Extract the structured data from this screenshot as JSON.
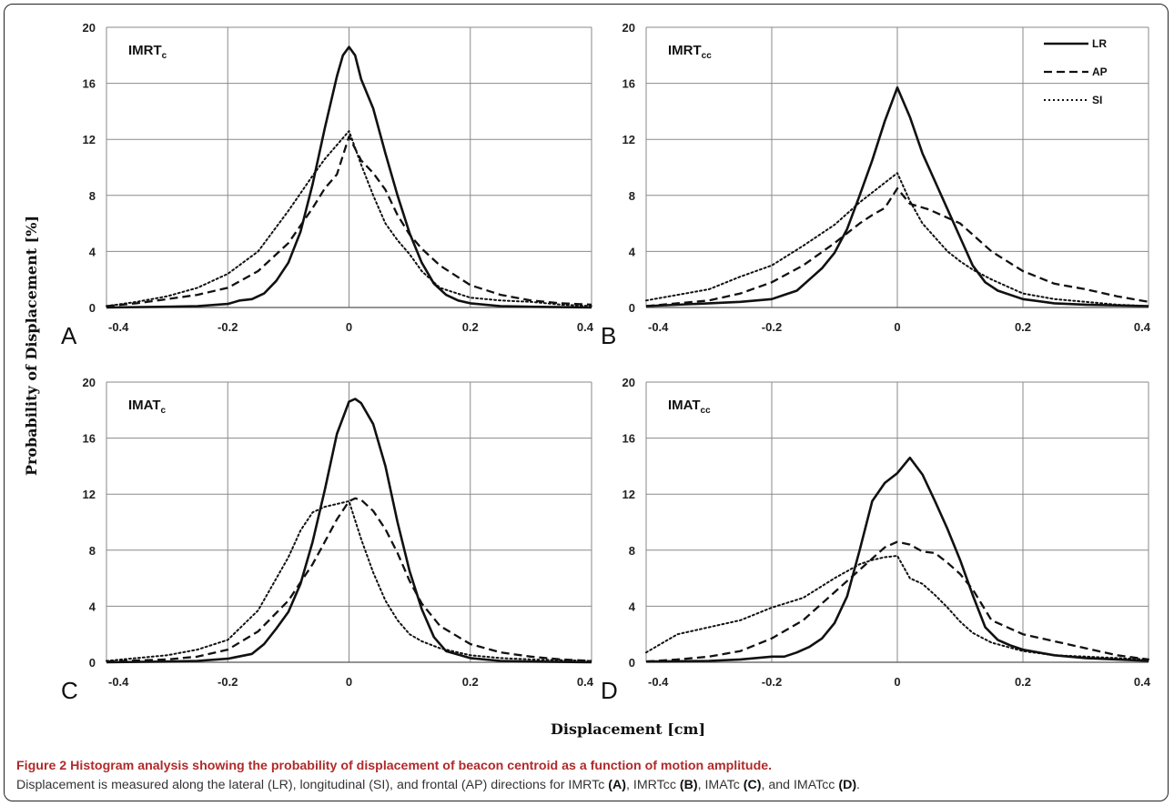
{
  "figure": {
    "caption_title": "Figure 2 Histogram analysis showing the probability of displacement of beacon centroid as a function of motion amplitude.",
    "caption_body_parts": [
      {
        "text": "Displacement is measured along the lateral (LR), longitudinal (SI), and frontal (AP) directions for IMRTc ",
        "bold": false
      },
      {
        "text": "(A)",
        "bold": true
      },
      {
        "text": ", IMRTcc ",
        "bold": false
      },
      {
        "text": "(B)",
        "bold": true
      },
      {
        "text": ", IMATc ",
        "bold": false
      },
      {
        "text": "(C)",
        "bold": true
      },
      {
        "text": ", and IMATcc ",
        "bold": false
      },
      {
        "text": "(D)",
        "bold": true
      },
      {
        "text": ".",
        "bold": false
      }
    ],
    "ylabel": "Probability of Displacement [%]",
    "xlabel": "Displacement [cm]",
    "legend": [
      {
        "name": "LR",
        "style": "solid"
      },
      {
        "name": "AP",
        "style": "dashed"
      },
      {
        "name": "SI",
        "style": "dotted"
      }
    ]
  },
  "chart_data": [
    {
      "type": "line",
      "panel": "A",
      "title": "IMRT",
      "title_sub": "c",
      "xlim": [
        -0.4,
        0.4
      ],
      "ylim": [
        0,
        20
      ],
      "xticks": [
        -0.4,
        -0.2,
        0,
        0.2,
        0.4
      ],
      "xtick_labels": [
        "-0.4",
        "-0.2",
        "0",
        "0.2",
        "0.4"
      ],
      "yticks": [
        0,
        4,
        8,
        12,
        16,
        20
      ],
      "grid": true,
      "series": [
        {
          "name": "LR",
          "style": "solid",
          "x": [
            -0.4,
            -0.3,
            -0.25,
            -0.2,
            -0.18,
            -0.16,
            -0.14,
            -0.12,
            -0.1,
            -0.08,
            -0.06,
            -0.04,
            -0.02,
            -0.01,
            0,
            0.01,
            0.02,
            0.04,
            0.06,
            0.08,
            0.1,
            0.12,
            0.14,
            0.16,
            0.18,
            0.2,
            0.25,
            0.3,
            0.4
          ],
          "y": [
            0,
            0.05,
            0.1,
            0.25,
            0.5,
            0.6,
            1.0,
            1.9,
            3.2,
            5.4,
            8.8,
            12.8,
            16.5,
            18.0,
            18.6,
            18.0,
            16.3,
            14.2,
            11.0,
            8.0,
            5.3,
            3.2,
            1.7,
            0.9,
            0.5,
            0.3,
            0.1,
            0.05,
            0
          ]
        },
        {
          "name": "AP",
          "style": "dashed",
          "x": [
            -0.4,
            -0.35,
            -0.3,
            -0.25,
            -0.2,
            -0.15,
            -0.1,
            -0.06,
            -0.04,
            -0.02,
            0,
            0.02,
            0.04,
            0.06,
            0.08,
            0.1,
            0.12,
            0.15,
            0.2,
            0.25,
            0.3,
            0.35,
            0.4
          ],
          "y": [
            0.1,
            0.3,
            0.6,
            0.9,
            1.4,
            2.6,
            4.6,
            7.1,
            8.5,
            9.5,
            12.2,
            10.5,
            9.6,
            8.4,
            6.6,
            5.2,
            4.2,
            3.0,
            1.6,
            0.9,
            0.5,
            0.3,
            0.2
          ]
        },
        {
          "name": "SI",
          "style": "dotted",
          "x": [
            -0.4,
            -0.35,
            -0.3,
            -0.25,
            -0.2,
            -0.15,
            -0.1,
            -0.06,
            -0.04,
            -0.02,
            0,
            0.02,
            0.04,
            0.06,
            0.08,
            0.1,
            0.12,
            0.15,
            0.2,
            0.25,
            0.3,
            0.35,
            0.4
          ],
          "y": [
            0.1,
            0.4,
            0.8,
            1.4,
            2.4,
            4.0,
            6.9,
            9.4,
            10.6,
            11.6,
            12.6,
            10.2,
            8.0,
            6.0,
            4.8,
            3.8,
            2.6,
            1.4,
            0.7,
            0.5,
            0.4,
            0.2,
            0.1
          ]
        }
      ]
    },
    {
      "type": "line",
      "panel": "B",
      "title": "IMRT",
      "title_sub": "cc",
      "xlim": [
        -0.4,
        0.4
      ],
      "ylim": [
        0,
        20
      ],
      "xticks": [
        -0.4,
        -0.2,
        0,
        0.2,
        0.4
      ],
      "xtick_labels": [
        "-0.4",
        "-0.2",
        "0",
        "0.2",
        "0.4"
      ],
      "yticks": [
        0,
        4,
        8,
        12,
        16,
        20
      ],
      "grid": true,
      "series": [
        {
          "name": "LR",
          "style": "solid",
          "x": [
            -0.4,
            -0.3,
            -0.25,
            -0.2,
            -0.18,
            -0.16,
            -0.14,
            -0.12,
            -0.1,
            -0.08,
            -0.06,
            -0.04,
            -0.02,
            0,
            0.02,
            0.04,
            0.06,
            0.08,
            0.1,
            0.12,
            0.14,
            0.16,
            0.2,
            0.25,
            0.3,
            0.4
          ],
          "y": [
            0.1,
            0.3,
            0.4,
            0.6,
            0.9,
            1.2,
            2.0,
            2.8,
            3.9,
            5.6,
            8.0,
            10.5,
            13.3,
            15.7,
            13.6,
            11.0,
            9.0,
            7.0,
            5.0,
            3.0,
            1.8,
            1.2,
            0.6,
            0.3,
            0.2,
            0.1
          ]
        },
        {
          "name": "AP",
          "style": "dashed",
          "x": [
            -0.4,
            -0.3,
            -0.25,
            -0.2,
            -0.15,
            -0.1,
            -0.06,
            -0.04,
            -0.02,
            0,
            0.02,
            0.05,
            0.08,
            0.1,
            0.12,
            0.15,
            0.2,
            0.25,
            0.3,
            0.35,
            0.4
          ],
          "y": [
            0.1,
            0.5,
            1.0,
            1.8,
            3.0,
            4.6,
            6.0,
            6.6,
            7.1,
            8.5,
            7.4,
            7.0,
            6.4,
            6.0,
            5.2,
            4.0,
            2.6,
            1.7,
            1.3,
            0.8,
            0.4
          ]
        },
        {
          "name": "SI",
          "style": "dotted",
          "x": [
            -0.4,
            -0.3,
            -0.25,
            -0.2,
            -0.15,
            -0.1,
            -0.06,
            -0.04,
            -0.02,
            0,
            0.02,
            0.04,
            0.06,
            0.08,
            0.1,
            0.12,
            0.15,
            0.2,
            0.25,
            0.3,
            0.35,
            0.4
          ],
          "y": [
            0.5,
            1.3,
            2.2,
            3.0,
            4.4,
            5.9,
            7.5,
            8.2,
            8.9,
            9.6,
            7.6,
            6.0,
            5.0,
            4.0,
            3.3,
            2.7,
            2.0,
            1.0,
            0.6,
            0.4,
            0.2,
            0.1
          ]
        }
      ]
    },
    {
      "type": "line",
      "panel": "C",
      "title": "IMAT",
      "title_sub": "c",
      "xlim": [
        -0.4,
        0.4
      ],
      "ylim": [
        0,
        20
      ],
      "xticks": [
        -0.4,
        -0.2,
        0,
        0.2,
        0.4
      ],
      "xtick_labels": [
        "-0.4",
        "-0.2",
        "0",
        "0.2",
        "0.4"
      ],
      "yticks": [
        0,
        4,
        8,
        12,
        16,
        20
      ],
      "grid": true,
      "series": [
        {
          "name": "LR",
          "style": "solid",
          "x": [
            -0.4,
            -0.3,
            -0.25,
            -0.2,
            -0.16,
            -0.14,
            -0.12,
            -0.1,
            -0.08,
            -0.06,
            -0.04,
            -0.02,
            0,
            0.01,
            0.02,
            0.04,
            0.06,
            0.08,
            0.1,
            0.12,
            0.14,
            0.16,
            0.2,
            0.25,
            0.3,
            0.4
          ],
          "y": [
            0,
            0.05,
            0.1,
            0.25,
            0.6,
            1.3,
            2.4,
            3.6,
            5.6,
            8.6,
            12.3,
            16.3,
            18.6,
            18.8,
            18.5,
            17.0,
            14.0,
            10.0,
            6.5,
            3.8,
            1.8,
            0.8,
            0.3,
            0.1,
            0.05,
            0
          ]
        },
        {
          "name": "AP",
          "style": "dashed",
          "x": [
            -0.4,
            -0.3,
            -0.25,
            -0.2,
            -0.15,
            -0.1,
            -0.06,
            -0.04,
            -0.02,
            0,
            0.01,
            0.02,
            0.04,
            0.06,
            0.08,
            0.1,
            0.12,
            0.15,
            0.2,
            0.25,
            0.3,
            0.35,
            0.4
          ],
          "y": [
            0.05,
            0.2,
            0.4,
            0.9,
            2.2,
            4.4,
            7.0,
            8.6,
            10.2,
            11.5,
            11.7,
            11.6,
            10.8,
            9.5,
            7.8,
            5.8,
            4.2,
            2.6,
            1.3,
            0.7,
            0.4,
            0.2,
            0.1
          ]
        },
        {
          "name": "SI",
          "style": "dotted",
          "x": [
            -0.4,
            -0.3,
            -0.25,
            -0.2,
            -0.15,
            -0.1,
            -0.08,
            -0.06,
            -0.04,
            -0.02,
            0,
            0.02,
            0.04,
            0.06,
            0.08,
            0.1,
            0.12,
            0.15,
            0.2,
            0.25,
            0.3,
            0.4
          ],
          "y": [
            0.1,
            0.5,
            0.9,
            1.6,
            3.7,
            7.5,
            9.4,
            10.7,
            11.1,
            11.3,
            11.5,
            8.8,
            6.4,
            4.4,
            3.0,
            2.0,
            1.5,
            1.0,
            0.5,
            0.3,
            0.2,
            0.1
          ]
        }
      ]
    },
    {
      "type": "line",
      "panel": "D",
      "title": "IMAT",
      "title_sub": "cc",
      "xlim": [
        -0.4,
        0.4
      ],
      "ylim": [
        0,
        20
      ],
      "xticks": [
        -0.4,
        -0.2,
        0,
        0.2,
        0.4
      ],
      "xtick_labels": [
        "-0.4",
        "-0.2",
        "0",
        "0.2",
        "0.4"
      ],
      "yticks": [
        0,
        4,
        8,
        12,
        16,
        20
      ],
      "grid": true,
      "series": [
        {
          "name": "LR",
          "style": "solid",
          "x": [
            -0.4,
            -0.3,
            -0.25,
            -0.2,
            -0.18,
            -0.16,
            -0.14,
            -0.12,
            -0.1,
            -0.08,
            -0.06,
            -0.04,
            -0.02,
            0,
            0.02,
            0.04,
            0.06,
            0.08,
            0.1,
            0.12,
            0.14,
            0.16,
            0.18,
            0.2,
            0.25,
            0.3,
            0.4
          ],
          "y": [
            0.05,
            0.1,
            0.2,
            0.4,
            0.4,
            0.7,
            1.1,
            1.7,
            2.8,
            4.7,
            8.0,
            11.5,
            12.8,
            13.5,
            14.6,
            13.4,
            11.5,
            9.5,
            7.3,
            4.8,
            2.5,
            1.6,
            1.2,
            0.9,
            0.5,
            0.3,
            0.1
          ]
        },
        {
          "name": "AP",
          "style": "dashed",
          "x": [
            -0.4,
            -0.35,
            -0.3,
            -0.25,
            -0.2,
            -0.15,
            -0.1,
            -0.06,
            -0.04,
            -0.02,
            0,
            0.02,
            0.04,
            0.06,
            0.08,
            0.1,
            0.12,
            0.15,
            0.2,
            0.25,
            0.3,
            0.35,
            0.4
          ],
          "y": [
            0.05,
            0.2,
            0.4,
            0.8,
            1.7,
            3.0,
            5.0,
            6.6,
            7.4,
            8.2,
            8.6,
            8.4,
            7.9,
            7.8,
            7.1,
            6.3,
            5.2,
            3.0,
            2.0,
            1.5,
            1.0,
            0.5,
            0.2
          ]
        },
        {
          "name": "SI",
          "style": "dotted",
          "x": [
            -0.4,
            -0.35,
            -0.3,
            -0.25,
            -0.2,
            -0.15,
            -0.1,
            -0.06,
            -0.04,
            -0.02,
            0,
            0.02,
            0.04,
            0.06,
            0.08,
            0.1,
            0.12,
            0.15,
            0.2,
            0.25,
            0.3,
            0.35,
            0.4
          ],
          "y": [
            0.7,
            2.0,
            2.5,
            3.0,
            3.9,
            4.6,
            6.0,
            7.0,
            7.3,
            7.5,
            7.6,
            6.0,
            5.6,
            4.8,
            3.9,
            2.9,
            2.1,
            1.4,
            0.8,
            0.5,
            0.4,
            0.3,
            0.2
          ]
        }
      ]
    }
  ]
}
